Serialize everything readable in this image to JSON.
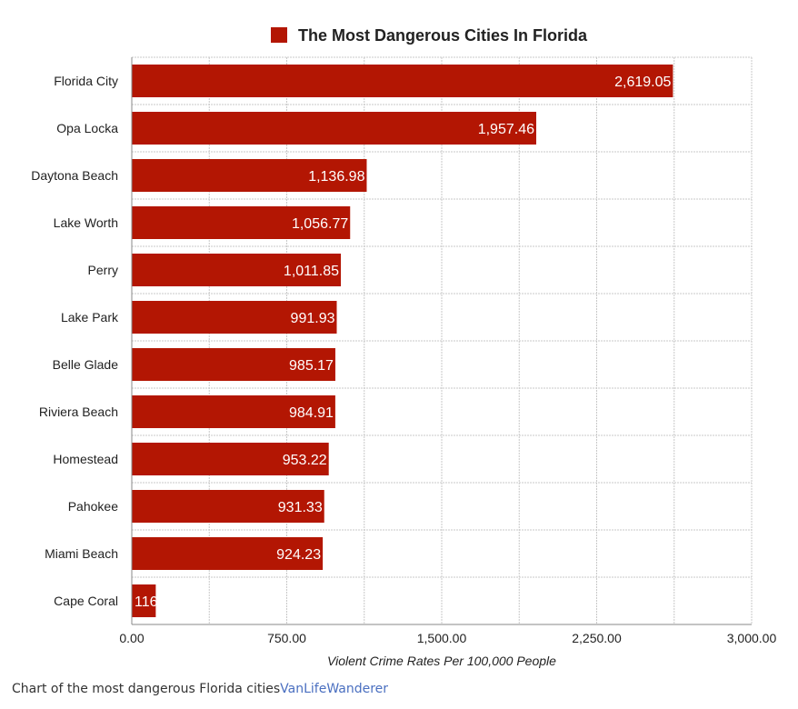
{
  "chart_data": {
    "type": "bar",
    "orientation": "horizontal",
    "title": "The Most Dangerous Cities In Florida",
    "legend": {
      "label": "The Most Dangerous Cities In Florida",
      "position": "top"
    },
    "xlabel": "Violent Crime Rates Per 100,000 People",
    "ylabel": "",
    "xlim": [
      0,
      3000
    ],
    "xticks": [
      "0.00",
      "750.00",
      "1,500.00",
      "2,250.00",
      "3,000.00"
    ],
    "categories": [
      "Florida City",
      "Opa Locka",
      "Daytona Beach",
      "Lake Worth",
      "Perry",
      "Lake Park",
      "Belle Glade",
      "Riviera Beach",
      "Homestead",
      "Pahokee",
      "Miami Beach",
      "Cape Coral"
    ],
    "values": [
      2619.05,
      1957.46,
      1136.98,
      1056.77,
      1011.85,
      991.93,
      985.17,
      984.91,
      953.22,
      931.33,
      924.23,
      116
    ],
    "value_labels": [
      "2,619.05",
      "1,957.46",
      "1,136.98",
      "1,056.77",
      "1,011.85",
      "991.93",
      "985.17",
      "984.91",
      "953.22",
      "931.33",
      "924.23",
      "116"
    ],
    "grid": true,
    "colors": {
      "bar": "#b31603",
      "bar_label": "#ffffff",
      "grid": "#c8c8c8",
      "text": "#222222"
    }
  },
  "caption": {
    "text": "Chart of the most dangerous Florida cities",
    "link_text": "VanLifeWanderer"
  }
}
